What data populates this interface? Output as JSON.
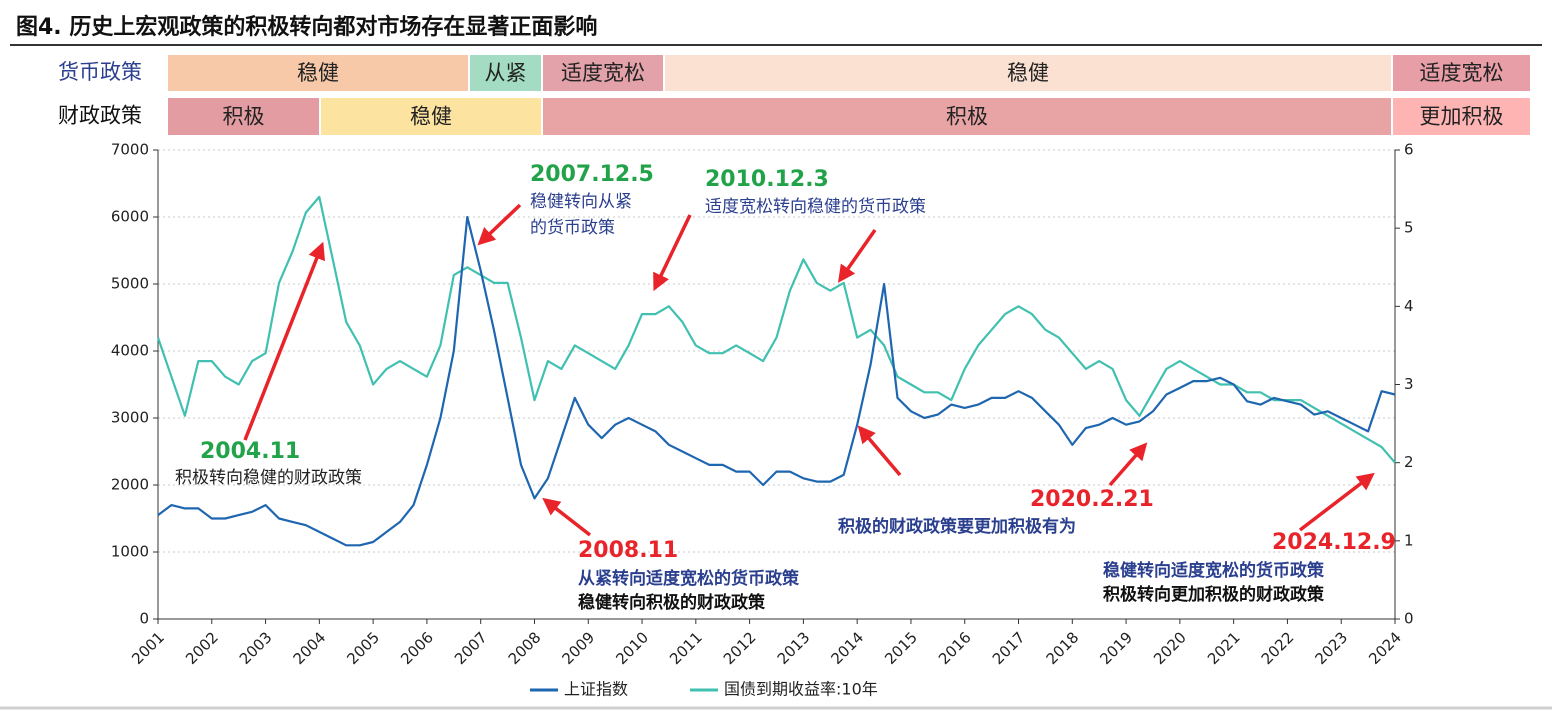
{
  "chart_data": {
    "type": "line",
    "title": "图4. 历史上宏观政策的积极转向都对市场存在显著正面影响",
    "policy_rows": [
      {
        "name": "货币政策",
        "color": "#2b3f8f",
        "segments": [
          {
            "label": "稳健",
            "color": "#f7c9a8"
          },
          {
            "label": "从紧",
            "color": "#a3dcc2"
          },
          {
            "label": "适度宽松",
            "color": "#e3a2a9"
          },
          {
            "label": "稳健",
            "color": "#fbe1d2"
          },
          {
            "label": "适度宽松",
            "color": "#e89ea6"
          }
        ]
      },
      {
        "name": "财政政策",
        "color": "#111111",
        "segments": [
          {
            "label": "积极",
            "color": "#e39ca1"
          },
          {
            "label": "稳健",
            "color": "#fde3a0"
          },
          {
            "label": "积极",
            "color": "#e8a3a5"
          },
          {
            "label": "更加积极",
            "color": "#ffb4b4"
          }
        ]
      }
    ],
    "x": [
      2001,
      2001.25,
      2001.5,
      2001.75,
      2002,
      2002.25,
      2002.5,
      2002.75,
      2003,
      2003.25,
      2003.5,
      2003.75,
      2004,
      2004.25,
      2004.5,
      2004.75,
      2005,
      2005.25,
      2005.5,
      2005.75,
      2006,
      2006.25,
      2006.5,
      2006.75,
      2007,
      2007.25,
      2007.5,
      2007.75,
      2008,
      2008.25,
      2008.5,
      2008.75,
      2009,
      2009.25,
      2009.5,
      2009.75,
      2010,
      2010.25,
      2010.5,
      2010.75,
      2011,
      2011.25,
      2011.5,
      2011.75,
      2012,
      2012.25,
      2012.5,
      2012.75,
      2013,
      2013.25,
      2013.5,
      2013.75,
      2014,
      2014.25,
      2014.5,
      2014.75,
      2015,
      2015.25,
      2015.5,
      2015.75,
      2016,
      2016.25,
      2016.5,
      2016.75,
      2017,
      2017.25,
      2017.5,
      2017.75,
      2018,
      2018.25,
      2018.5,
      2018.75,
      2019,
      2019.25,
      2019.5,
      2019.75,
      2020,
      2020.25,
      2020.5,
      2020.75,
      2021,
      2021.25,
      2021.5,
      2021.75,
      2022,
      2022.25,
      2022.5,
      2022.75,
      2023,
      2023.25,
      2023.5,
      2023.75,
      2024
    ],
    "series": [
      {
        "name": "上证指数",
        "color": "#1f66b0",
        "values": [
          1550,
          1700,
          1650,
          1650,
          1500,
          1500,
          1550,
          1600,
          1700,
          1500,
          1450,
          1400,
          1300,
          1200,
          1100,
          1100,
          1150,
          1300,
          1450,
          1700,
          2300,
          3000,
          4000,
          6000,
          5200,
          4300,
          3300,
          2300,
          1800,
          2100,
          2700,
          3300,
          2900,
          2700,
          2900,
          3000,
          2900,
          2800,
          2600,
          2500,
          2400,
          2300,
          2300,
          2200,
          2200,
          2000,
          2200,
          2200,
          2100,
          2050,
          2050,
          2150,
          2900,
          3800,
          5000,
          3300,
          3100,
          3000,
          3050,
          3200,
          3150,
          3200,
          3300,
          3300,
          3400,
          3300,
          3100,
          2900,
          2600,
          2850,
          2900,
          3000,
          2900,
          2950,
          3100,
          3350,
          3450,
          3550,
          3550,
          3600,
          3500,
          3250,
          3200,
          3300,
          3250,
          3200,
          3050,
          3100,
          3000,
          2900,
          2800,
          3400,
          3350
        ]
      },
      {
        "name": "国债到期收益率:10年",
        "color": "#40c0b0",
        "axis": "y2",
        "values": [
          3.6,
          3.1,
          2.6,
          3.3,
          3.3,
          3.1,
          3.0,
          3.3,
          3.4,
          4.3,
          4.7,
          5.2,
          5.4,
          4.6,
          3.8,
          3.5,
          3.0,
          3.2,
          3.3,
          3.2,
          3.1,
          3.5,
          4.4,
          4.5,
          4.4,
          4.3,
          4.3,
          3.6,
          2.8,
          3.3,
          3.2,
          3.5,
          3.4,
          3.3,
          3.2,
          3.5,
          3.9,
          3.9,
          4.0,
          3.8,
          3.5,
          3.4,
          3.4,
          3.5,
          3.4,
          3.3,
          3.6,
          4.2,
          4.6,
          4.3,
          4.2,
          4.3,
          3.6,
          3.7,
          3.5,
          3.1,
          3.0,
          2.9,
          2.9,
          2.8,
          3.2,
          3.5,
          3.7,
          3.9,
          4.0,
          3.9,
          3.7,
          3.6,
          3.4,
          3.2,
          3.3,
          3.2,
          2.8,
          2.6,
          2.9,
          3.2,
          3.3,
          3.2,
          3.1,
          3.0,
          3.0,
          2.9,
          2.9,
          2.8,
          2.8,
          2.8,
          2.7,
          2.6,
          2.5,
          2.4,
          2.3,
          2.2,
          2.0
        ]
      }
    ],
    "xlim": [
      2001,
      2024
    ],
    "xticks": [
      2001,
      2002,
      2003,
      2004,
      2005,
      2006,
      2007,
      2008,
      2009,
      2010,
      2011,
      2012,
      2013,
      2014,
      2015,
      2016,
      2017,
      2018,
      2019,
      2020,
      2021,
      2022,
      2023,
      2024
    ],
    "ylim": [
      0,
      7000
    ],
    "yticks": [
      0,
      1000,
      2000,
      3000,
      4000,
      5000,
      6000,
      7000
    ],
    "y2lim": [
      0,
      6
    ],
    "y2ticks": [
      0,
      1,
      2,
      3,
      4,
      5,
      6
    ],
    "grid": true,
    "legend": "bottom",
    "annotations": [
      {
        "date": "2004.11",
        "date_color": "#22a34a",
        "lines": [
          {
            "text": "积极转向稳健的财政政策",
            "color": "#222222"
          }
        ]
      },
      {
        "date": "2007.12.5",
        "date_color": "#22a34a",
        "lines": [
          {
            "text": "稳健转向从紧",
            "color": "#2b3f8f"
          },
          {
            "text": "的货币政策",
            "color": "#2b3f8f"
          }
        ]
      },
      {
        "date": "2010.12.3",
        "date_color": "#22a34a",
        "lines": [
          {
            "text": "适度宽松转向稳健的货币政策",
            "color": "#2b3f8f"
          }
        ]
      },
      {
        "date": "2008.11",
        "date_color": "#e8242a",
        "lines": [
          {
            "text": "从紧转向适度宽松的货币政策",
            "color": "#2b3f8f"
          },
          {
            "text": "稳健转向积极的财政政策",
            "color": "#111111"
          }
        ]
      },
      {
        "date": "2020.2.21",
        "date_color": "#e8242a",
        "lines": [
          {
            "text": "积极的财政政策要更加积极有为",
            "color": "#2b3f8f"
          }
        ]
      },
      {
        "date": "2024.12.9",
        "date_color": "#e8242a",
        "lines": [
          {
            "text": "稳健转向适度宽松的货币政策",
            "color": "#2b3f8f"
          },
          {
            "text": "积极转向更加积极的财政政策",
            "color": "#111111"
          }
        ]
      }
    ]
  }
}
